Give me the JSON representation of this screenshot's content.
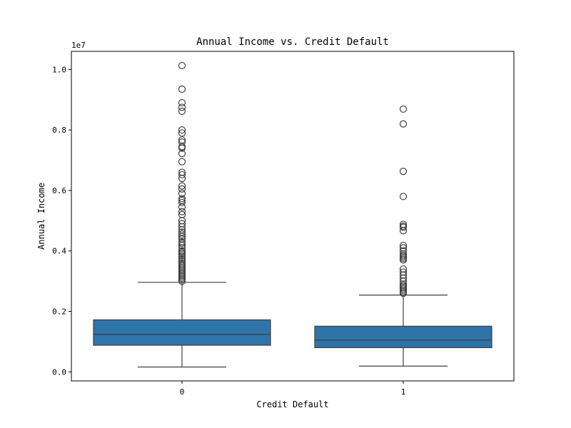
{
  "chart_data": {
    "type": "box",
    "title": "Annual Income vs. Credit Default",
    "xlabel": "Credit Default",
    "ylabel": "Annual Income",
    "y_offset_label": "1e7",
    "color": "#2f74a8",
    "categories": [
      "0",
      "1"
    ],
    "ylim": [
      -0.03,
      1.06
    ],
    "yticks": [
      0.0,
      0.2,
      0.4,
      0.6,
      0.8,
      1.0
    ],
    "ytick_labels": [
      "0.0",
      "0.2",
      "0.4",
      "0.6",
      "0.8",
      "1.0"
    ],
    "boxes": [
      {
        "category": "0",
        "whisker_low": 0.016,
        "q1": 0.088,
        "median": 0.124,
        "q3": 0.172,
        "whisker_high": 0.296,
        "outliers": [
          1.013,
          0.935,
          0.89,
          0.875,
          0.862,
          0.8,
          0.79,
          0.767,
          0.76,
          0.745,
          0.74,
          0.722,
          0.695,
          0.66,
          0.652,
          0.64,
          0.615,
          0.605,
          0.59,
          0.573,
          0.567,
          0.56,
          0.545,
          0.53,
          0.52,
          0.5,
          0.49,
          0.48,
          0.47,
          0.462,
          0.455,
          0.448,
          0.44,
          0.43,
          0.425,
          0.418,
          0.41,
          0.4,
          0.395,
          0.39,
          0.384,
          0.378,
          0.372,
          0.366,
          0.36,
          0.355,
          0.35,
          0.345,
          0.34,
          0.335,
          0.33,
          0.325,
          0.32,
          0.315,
          0.31,
          0.305,
          0.3
        ]
      },
      {
        "category": "1",
        "whisker_low": 0.019,
        "q1": 0.08,
        "median": 0.105,
        "q3": 0.151,
        "whisker_high": 0.254,
        "outliers": [
          0.869,
          0.82,
          0.663,
          0.58,
          0.488,
          0.482,
          0.478,
          0.467,
          0.418,
          0.41,
          0.4,
          0.39,
          0.385,
          0.38,
          0.375,
          0.37,
          0.34,
          0.33,
          0.32,
          0.31,
          0.3,
          0.29,
          0.285,
          0.28,
          0.275,
          0.27,
          0.265,
          0.26
        ]
      }
    ]
  }
}
